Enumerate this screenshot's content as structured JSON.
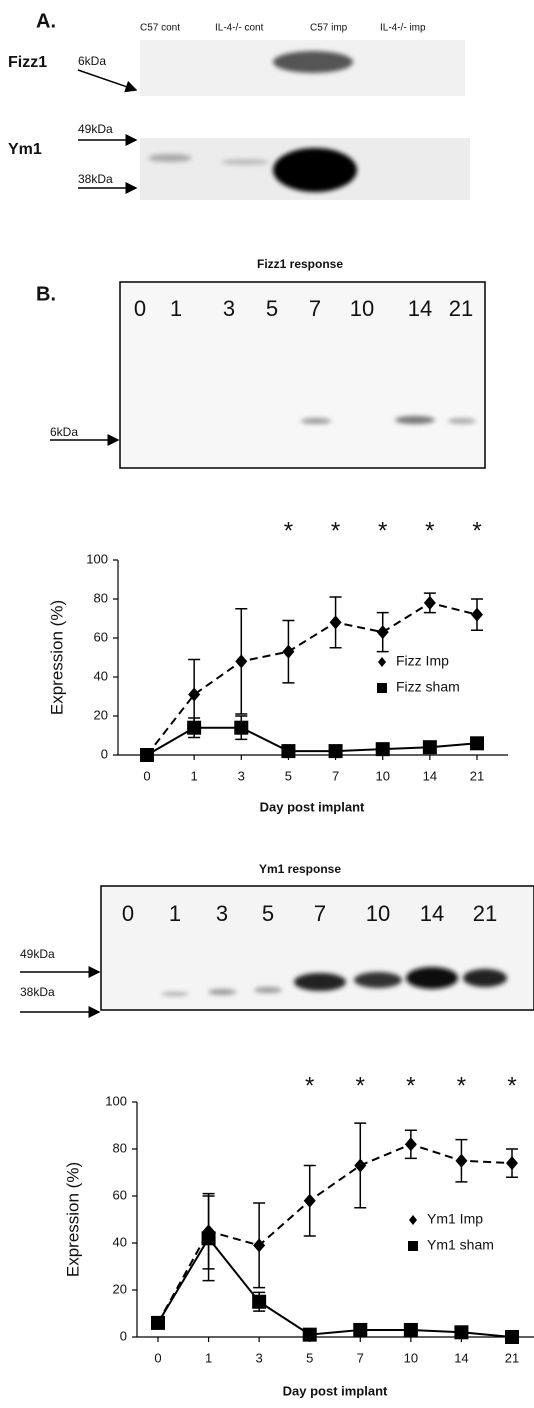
{
  "panel_a": {
    "label": "A.",
    "lanes": [
      "C57 cont",
      "IL-4-/- cont",
      "C57 imp",
      "IL-4-/- imp"
    ],
    "rows": [
      {
        "name": "Fizz1",
        "markers": [
          "6kDa"
        ]
      },
      {
        "name": "Ym1",
        "markers": [
          "49kDa",
          "38kDa"
        ]
      }
    ]
  },
  "panel_b": {
    "label": "B.",
    "blots": [
      {
        "title": "Fizz1 response",
        "lanes": [
          "0",
          "1",
          "3",
          "5",
          "7",
          "10",
          "14",
          "21"
        ],
        "markers": [
          "6kDa"
        ]
      },
      {
        "title": "Ym1 response",
        "lanes": [
          "0",
          "1",
          "3",
          "5",
          "7",
          "10",
          "14",
          "21"
        ],
        "markers": [
          "49kDa",
          "38kDa"
        ]
      }
    ]
  },
  "chart_data": [
    {
      "type": "line",
      "x_label": "Day post implant",
      "y_label": "Expression (%)",
      "categories": [
        "0",
        "1",
        "3",
        "5",
        "7",
        "10",
        "14",
        "21"
      ],
      "ylim": [
        0,
        100
      ],
      "yticks": [
        0,
        20,
        40,
        60,
        80,
        100
      ],
      "legend": "right",
      "annotations": [
        {
          "x": "5",
          "text": "*"
        },
        {
          "x": "7",
          "text": "*"
        },
        {
          "x": "10",
          "text": "*"
        },
        {
          "x": "14",
          "text": "*"
        },
        {
          "x": "21",
          "text": "*"
        }
      ],
      "series": [
        {
          "name": "Fizz Imp",
          "color": "#000000",
          "line_style": "dashed",
          "marker": "diamond",
          "values": [
            0,
            31,
            48,
            53,
            68,
            63,
            78,
            72
          ],
          "errors": [
            null,
            18,
            27,
            16,
            13,
            10,
            5,
            8
          ]
        },
        {
          "name": "Fizz sham",
          "color": "#000000",
          "line_style": "solid",
          "marker": "square",
          "values": [
            0,
            14,
            14,
            2,
            2,
            3,
            4,
            6
          ],
          "errors": [
            null,
            5,
            6,
            null,
            null,
            null,
            null,
            null
          ]
        }
      ]
    },
    {
      "type": "line",
      "x_label": "Day post implant",
      "y_label": "Expression (%)",
      "categories": [
        "0",
        "1",
        "3",
        "5",
        "7",
        "10",
        "14",
        "21"
      ],
      "ylim": [
        0,
        100
      ],
      "yticks": [
        0,
        20,
        40,
        60,
        80,
        100
      ],
      "legend": "right",
      "annotations": [
        {
          "x": "5",
          "text": "*"
        },
        {
          "x": "7",
          "text": "*"
        },
        {
          "x": "10",
          "text": "*"
        },
        {
          "x": "14",
          "text": "*"
        },
        {
          "x": "21",
          "text": "*"
        }
      ],
      "series": [
        {
          "name": "Ym1 Imp",
          "color": "#000000",
          "line_style": "dashed",
          "marker": "diamond",
          "values": [
            6,
            45,
            39,
            58,
            73,
            82,
            75,
            74
          ],
          "errors": [
            null,
            16,
            18,
            15,
            18,
            6,
            9,
            6
          ]
        },
        {
          "name": "Ym1 sham",
          "color": "#000000",
          "line_style": "solid",
          "marker": "square",
          "values": [
            6,
            42,
            15,
            1,
            3,
            3,
            2,
            0
          ],
          "errors": [
            null,
            18,
            4,
            1,
            1,
            2,
            1,
            1
          ]
        }
      ]
    }
  ]
}
